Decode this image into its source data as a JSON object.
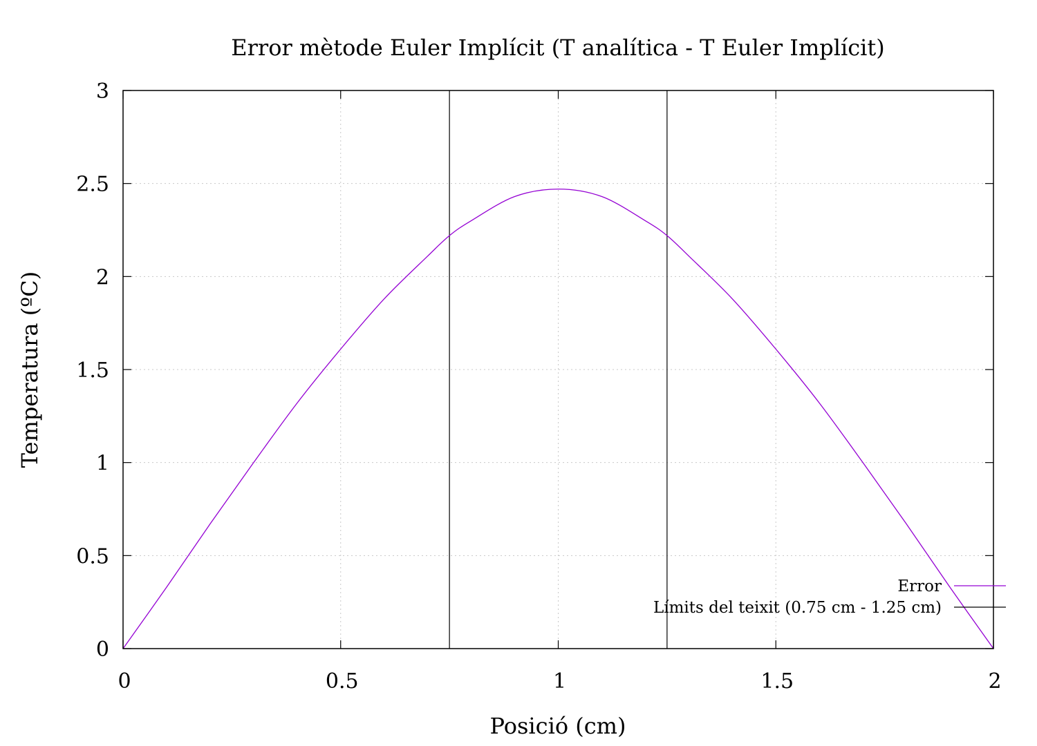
{
  "chart_data": {
    "type": "line",
    "title": "Error mètode Euler Implícit (T analítica - T Euler Implícit)",
    "xlabel": "Posició (cm)",
    "ylabel": "Temperatura (ºC)",
    "xlim": [
      0,
      2
    ],
    "ylim": [
      0,
      3
    ],
    "xticks": [
      0,
      0.5,
      1,
      1.5,
      2
    ],
    "xtick_labels": [
      "0",
      "0.5",
      "1",
      "1.5",
      "2"
    ],
    "yticks": [
      0,
      0.5,
      1,
      1.5,
      2,
      2.5,
      3
    ],
    "ytick_labels": [
      "0",
      "0.5",
      "1",
      "1.5",
      "2",
      "2.5",
      "3"
    ],
    "grid": true,
    "legend_position": "bottom-right",
    "series": [
      {
        "name": "Error",
        "color": "#9400d3",
        "x": [
          0,
          0.1,
          0.2,
          0.3,
          0.4,
          0.5,
          0.6,
          0.7,
          0.75,
          0.8,
          0.9,
          1.0,
          1.1,
          1.2,
          1.25,
          1.3,
          1.4,
          1.5,
          1.6,
          1.7,
          1.8,
          1.9,
          2.0
        ],
        "y": [
          0,
          0.33,
          0.67,
          1.0,
          1.32,
          1.61,
          1.88,
          2.11,
          2.22,
          2.3,
          2.43,
          2.47,
          2.43,
          2.3,
          2.22,
          2.11,
          1.88,
          1.61,
          1.32,
          1.0,
          0.67,
          0.33,
          0
        ]
      },
      {
        "name": "Límits del teixit (0.75 cm - 1.25 cm)",
        "color": "#000000",
        "type": "vlines",
        "x": [
          0.75,
          1.25
        ]
      }
    ]
  }
}
